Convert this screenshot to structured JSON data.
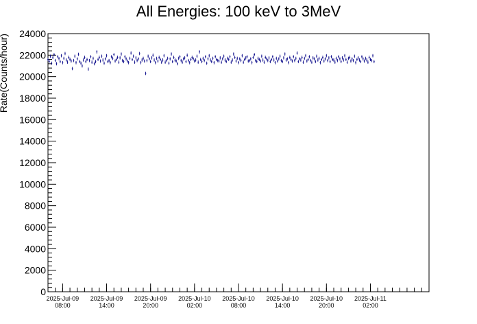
{
  "chart_data": {
    "type": "scatter",
    "title": "All Energies:  100 keV to 3MeV",
    "ylabel": "Rate(Counts/hour)",
    "xlabel": "",
    "ylim": [
      0,
      24000
    ],
    "yticks": [
      0,
      2000,
      4000,
      6000,
      8000,
      10000,
      12000,
      14000,
      16000,
      18000,
      20000,
      22000,
      24000
    ],
    "xlim": [
      "2025-07-09 06:00",
      "2025-07-11 10:00"
    ],
    "xtick_labels": [
      {
        "time": "2025-07-09 08:00",
        "date": "2025-Jul-09",
        "clock": "08:00"
      },
      {
        "time": "2025-07-09 14:00",
        "date": "2025-Jul-09",
        "clock": "14:00"
      },
      {
        "time": "2025-07-09 20:00",
        "date": "2025-Jul-09",
        "clock": "20:00"
      },
      {
        "time": "2025-07-10 02:00",
        "date": "2025-Jul-10",
        "clock": "02:00"
      },
      {
        "time": "2025-07-10 08:00",
        "date": "2025-Jul-10",
        "clock": "08:00"
      },
      {
        "time": "2025-07-10 14:00",
        "date": "2025-Jul-10",
        "clock": "14:00"
      },
      {
        "time": "2025-07-10 20:00",
        "date": "2025-Jul-10",
        "clock": "20:00"
      },
      {
        "time": "2025-07-11 02:00",
        "date": "2025-Jul-11",
        "clock": "02:00"
      }
    ],
    "grid": false,
    "marker_color": "#0a0a8a",
    "error_bar_half_height": 150,
    "series": [
      {
        "x_start": "2025-07-09 06:00",
        "x_step_minutes": 10,
        "values": [
          21600,
          21420,
          21900,
          21250,
          21780,
          22050,
          21500,
          21200,
          21850,
          21680,
          21400,
          21950,
          21300,
          21700,
          22150,
          21550,
          21350,
          21800,
          21620,
          21450,
          20750,
          21500,
          21900,
          21300,
          21650,
          22080,
          21400,
          21250,
          21000,
          21550,
          21800,
          21400,
          21600,
          20700,
          21500,
          21850,
          21350,
          21700,
          21200,
          21400,
          22300,
          21600,
          21800,
          21450,
          21900,
          21550,
          21250,
          21650,
          21950,
          21400,
          21500,
          21300,
          21850,
          21700,
          22050,
          21450,
          21600,
          21800,
          21350,
          21750,
          22100,
          21500,
          21400,
          21850,
          21650,
          21450,
          21300,
          21700,
          22200,
          21600,
          21900,
          21350,
          21750,
          21500,
          21650,
          22150,
          21300,
          21550,
          21700,
          21450,
          20300,
          21500,
          21900,
          21650,
          21400,
          21750,
          22000,
          21550,
          21300,
          21700,
          21450,
          21800,
          21600,
          21350,
          21550,
          21950,
          21350,
          21500,
          21700,
          21250,
          21650,
          22100,
          21400,
          21800,
          21550,
          21450,
          21200,
          21700,
          21850,
          21500,
          21350,
          21650,
          21750,
          21400,
          22000,
          21500,
          21300,
          21600,
          21800,
          21650,
          21450,
          21550,
          21900,
          21350,
          22300,
          21600,
          21400,
          21700,
          21500,
          21850,
          21250,
          21650,
          21950,
          21550,
          21400,
          21700,
          21300,
          21850,
          21600,
          21500,
          21450,
          21750,
          21350,
          21650,
          21900,
          21550,
          21400,
          21700,
          21600,
          21850,
          21350,
          21550,
          22100,
          21800,
          21450,
          21700,
          21300,
          21650,
          21500,
          21950,
          21350,
          21600,
          21750,
          21850,
          21450,
          21500,
          21650,
          21300,
          21800,
          22050,
          21500,
          21400,
          21700,
          21600,
          21450,
          21900,
          21550,
          21350,
          21800,
          21650,
          21500,
          21750,
          21400,
          21600,
          21850,
          21550,
          21300,
          21700,
          21450,
          21650,
          21900,
          21500,
          21400,
          21750,
          22100,
          21550,
          21650,
          21300,
          21800,
          21600,
          21450,
          21850,
          21500,
          21700,
          22200,
          21400,
          21650,
          21550,
          21800,
          21350,
          21700,
          21950,
          21450,
          21600,
          21850,
          21500,
          21350,
          21750,
          21650,
          21400,
          21900,
          21550,
          21700,
          21300,
          21600,
          21800,
          21450,
          21650,
          21950,
          21500,
          21750,
          21400,
          21850,
          21600,
          21550,
          21350,
          21700,
          21500,
          21850,
          21650,
          21400,
          21750,
          21550,
          21950,
          21600,
          21350,
          21700,
          21800,
          21450,
          21650,
          21500,
          21900,
          21300,
          21600,
          21750,
          21550,
          21400,
          21850,
          21650,
          21450,
          21700,
          21550,
          21350,
          21800,
          21600,
          21500,
          21950,
          21400
        ]
      }
    ]
  }
}
